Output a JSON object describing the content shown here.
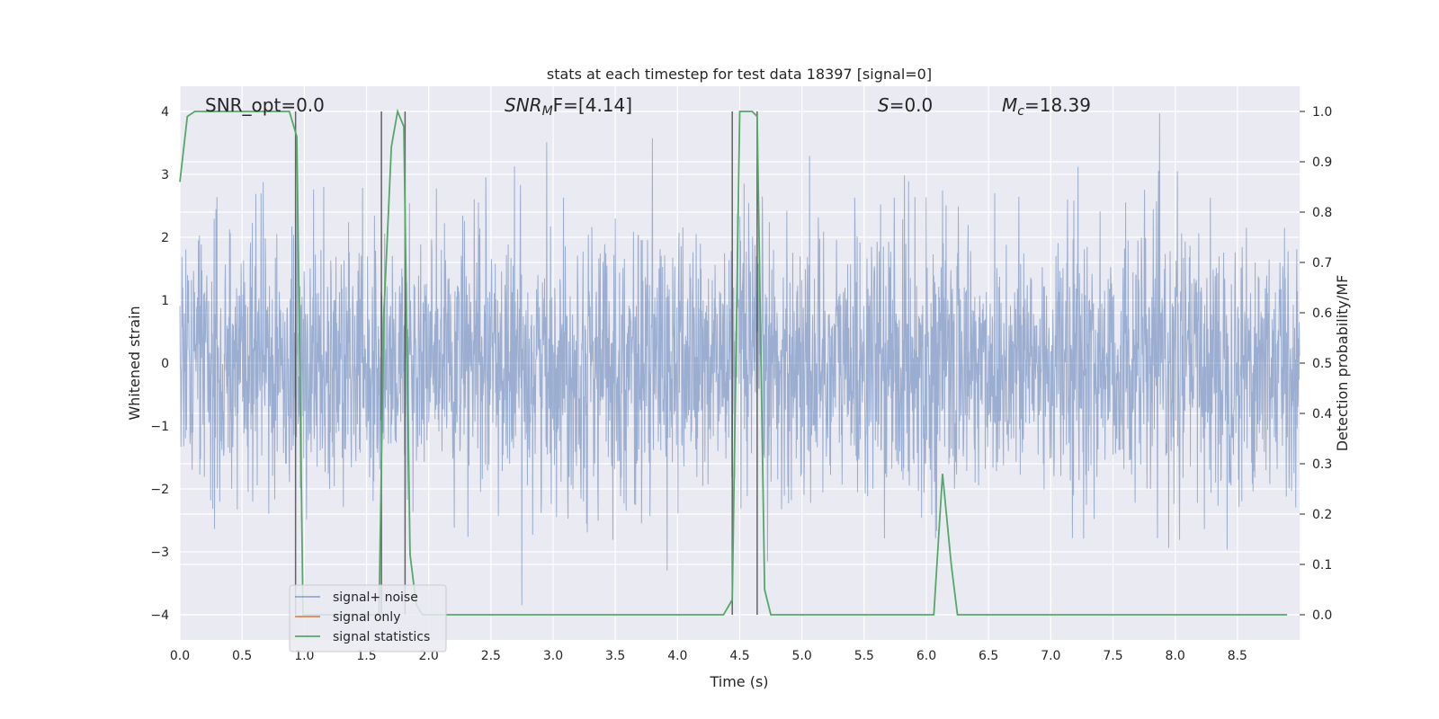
{
  "chart_data": {
    "type": "line",
    "title": "stats at each timestep for test data 18397 [signal=0]",
    "xlabel": "Time (s)",
    "ylabel_left": "Whitened strain",
    "ylabel_right": "Detection probability/MF",
    "xlim": [
      0.0,
      9.0
    ],
    "ylim_left": [
      -4.4,
      4.4
    ],
    "ylim_right": [
      -0.05,
      1.05
    ],
    "x_ticks": [
      0.0,
      0.5,
      1.0,
      1.5,
      2.0,
      2.5,
      3.0,
      3.5,
      4.0,
      4.5,
      5.0,
      5.5,
      6.0,
      6.5,
      7.0,
      7.5,
      8.0,
      8.5
    ],
    "x_tick_labels": [
      "0.0",
      "0.5",
      "1.0",
      "1.5",
      "2.0",
      "2.5",
      "3.0",
      "3.5",
      "4.0",
      "4.5",
      "5.0",
      "5.5",
      "6.0",
      "6.5",
      "7.0",
      "7.5",
      "8.0",
      "8.5"
    ],
    "y_left_ticks": [
      -4,
      -3,
      -2,
      -1,
      0,
      1,
      2,
      3,
      4
    ],
    "y_left_tick_labels": [
      "−4",
      "−3",
      "−2",
      "−1",
      "0",
      "1",
      "2",
      "3",
      "4"
    ],
    "y_right_ticks": [
      0.0,
      0.1,
      0.2,
      0.3,
      0.4,
      0.5,
      0.6,
      0.7,
      0.8,
      0.9,
      1.0
    ],
    "y_right_tick_labels": [
      "0.0",
      "0.1",
      "0.2",
      "0.3",
      "0.4",
      "0.5",
      "0.6",
      "0.7",
      "0.8",
      "0.9",
      "1.0"
    ],
    "grid": true,
    "legend_placement": "lower-left",
    "annotations": {
      "snr_opt": "SNR_opt=0.0",
      "snr_mf_main": "SNR",
      "snr_mf_sub": "M",
      "snr_mf_tail": "F=[4.14]",
      "s_main": "S",
      "s_tail": "=0.0",
      "mc_main": "M",
      "mc_sub": "c",
      "mc_tail": "=18.39"
    },
    "vertical_markers_x": [
      0.93,
      1.62,
      1.81,
      4.44,
      4.64
    ],
    "series": [
      {
        "name": "signal+ noise",
        "axis": "left",
        "color": "#4c72b0",
        "description_values": "whitened noise, envelope approx ±2.5 with peaks near ±4"
      },
      {
        "name": "signal only",
        "axis": "left",
        "color": "#dd8452",
        "values": []
      },
      {
        "name": "signal statistics",
        "axis": "right",
        "color": "#55a868",
        "x": [
          0.0,
          0.06,
          0.12,
          0.3,
          0.6,
          0.85,
          0.88,
          0.94,
          0.99,
          1.05,
          1.6,
          1.64,
          1.7,
          1.75,
          1.8,
          1.85,
          1.9,
          1.95,
          2.0,
          3.0,
          4.0,
          4.37,
          4.44,
          4.5,
          4.55,
          4.6,
          4.64,
          4.7,
          4.75,
          5.0,
          6.0,
          6.06,
          6.13,
          6.2,
          6.25,
          7.0,
          8.0,
          8.9
        ],
        "y": [
          0.86,
          0.99,
          1.0,
          1.0,
          1.0,
          1.0,
          1.0,
          0.95,
          0.0,
          0.0,
          0.0,
          0.6,
          0.93,
          1.0,
          0.97,
          0.12,
          0.02,
          0.0,
          0.0,
          0.0,
          0.0,
          0.0,
          0.03,
          1.0,
          1.0,
          1.0,
          0.99,
          0.05,
          0.0,
          0.0,
          0.0,
          0.0,
          0.28,
          0.1,
          0.0,
          0.0,
          0.0,
          0.0
        ]
      }
    ]
  }
}
